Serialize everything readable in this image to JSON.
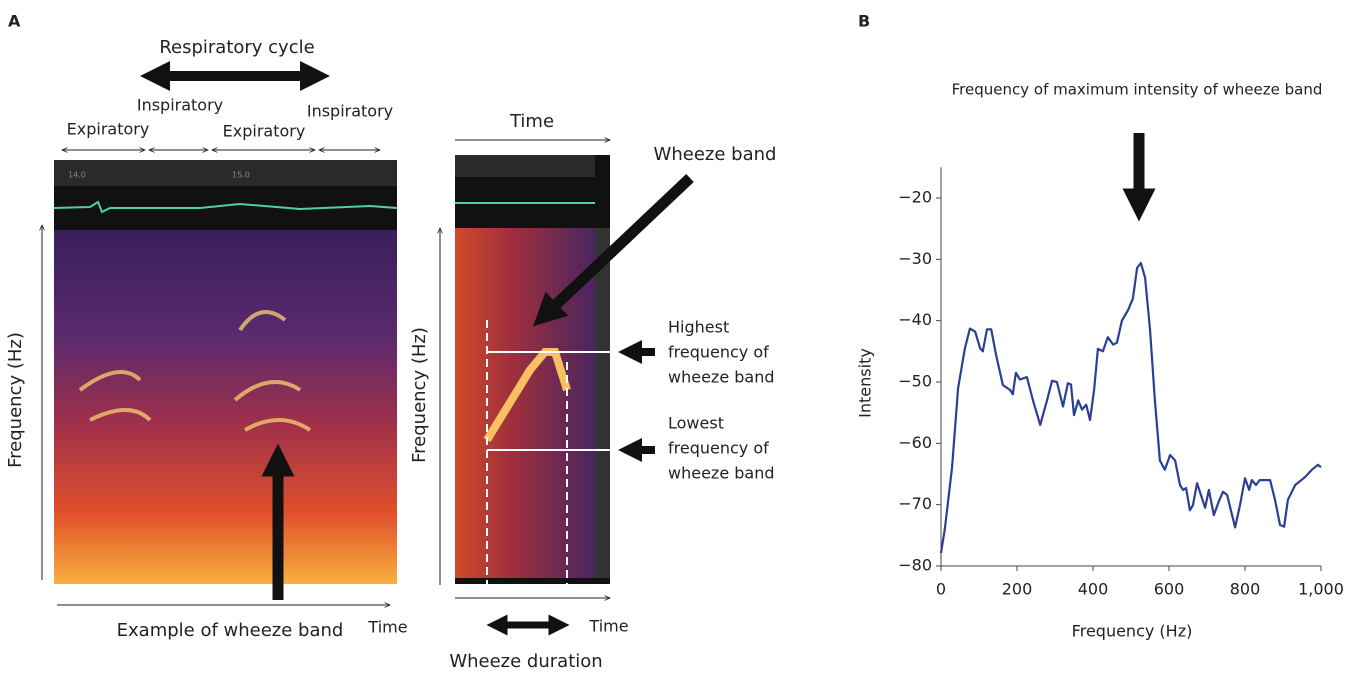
{
  "panel_labels": [
    "A",
    "B"
  ],
  "panel_a": {
    "respiratory_cycle": "Respiratory cycle",
    "phases": [
      "Expiratory",
      "Inspiratory",
      "Expiratory",
      "Inspiratory"
    ],
    "spectrogram_ticks": [
      "14.0",
      "15.0"
    ],
    "frequency_label_left": "Frequency (Hz)",
    "frequency_label_right": "Frequency (Hz)",
    "time_left": "Time",
    "time_top": "Time",
    "time_bottom": "Time",
    "example_label": "Example of wheeze band",
    "wheeze_band": "Wheeze band",
    "highest_label": [
      "Highest",
      "frequency of",
      "wheeze band"
    ],
    "lowest_label": [
      "Lowest",
      "frequency of",
      "wheeze band"
    ],
    "wheeze_duration": "Wheeze duration"
  },
  "chart_data": {
    "type": "line",
    "annotation": "Frequency of maximum intensity of wheeze band",
    "x_label": "Frequency (Hz)",
    "y_label": "Intensity",
    "x": [
      0,
      10,
      29,
      45,
      63,
      76,
      90,
      103,
      110,
      121,
      132,
      145,
      163,
      182,
      189,
      197,
      208,
      226,
      242,
      261,
      279,
      292,
      305,
      321,
      334,
      342,
      350,
      361,
      371,
      382,
      392,
      403,
      413,
      426,
      439,
      453,
      463,
      476,
      492,
      505,
      516,
      526,
      537,
      550,
      563,
      576,
      589,
      603,
      616,
      629,
      637,
      645,
      655,
      663,
      674,
      684,
      695,
      705,
      718,
      732,
      742,
      753,
      774,
      787,
      800,
      811,
      818,
      829,
      839,
      866,
      879,
      892,
      903,
      913,
      932,
      958,
      976,
      992,
      1000
    ],
    "series": [
      {
        "name": "Intensity",
        "color": "#2b3f93",
        "values": [
          -77.9,
          -74,
          -64,
          -51,
          -44.5,
          -41.3,
          -41.8,
          -44.5,
          -45,
          -41.4,
          -41.4,
          -45.6,
          -50.5,
          -51.3,
          -52,
          -48.5,
          -49.6,
          -49.2,
          -53,
          -57,
          -53,
          -49.8,
          -50,
          -54,
          -50.2,
          -50.4,
          -55.4,
          -53,
          -54.5,
          -53.7,
          -56.2,
          -51.3,
          -44.6,
          -45,
          -42.7,
          -43.9,
          -43.6,
          -40,
          -38.3,
          -36.4,
          -31.4,
          -30.6,
          -33,
          -41.4,
          -53,
          -62.8,
          -64.3,
          -61.9,
          -62.8,
          -66.8,
          -67.6,
          -67.3,
          -70.9,
          -70.1,
          -66.5,
          -68.4,
          -70.5,
          -67.6,
          -71.7,
          -69.3,
          -67.9,
          -68.4,
          -73.7,
          -70,
          -65.7,
          -67.6,
          -66,
          -66.8,
          -66,
          -66,
          -69.2,
          -73.3,
          -73.6,
          -69.2,
          -66.8,
          -65.5,
          -64.3,
          -63.5,
          -63.9
        ]
      }
    ],
    "xlim": [
      0,
      1000
    ],
    "ylim": [
      -80,
      -15
    ],
    "xticks": [
      0,
      200,
      400,
      600,
      800,
      {
        "value": 1000,
        "label": "1,000"
      }
    ],
    "yticks": [
      {
        "value": -80,
        "label": "−80"
      },
      {
        "value": -70,
        "label": "−70"
      },
      {
        "value": -60,
        "label": "−60"
      },
      {
        "value": -50,
        "label": "−50"
      },
      {
        "value": -40,
        "label": "−40"
      },
      {
        "value": -30,
        "label": "−30"
      },
      {
        "value": -20,
        "label": "−20"
      }
    ],
    "grid": false
  }
}
